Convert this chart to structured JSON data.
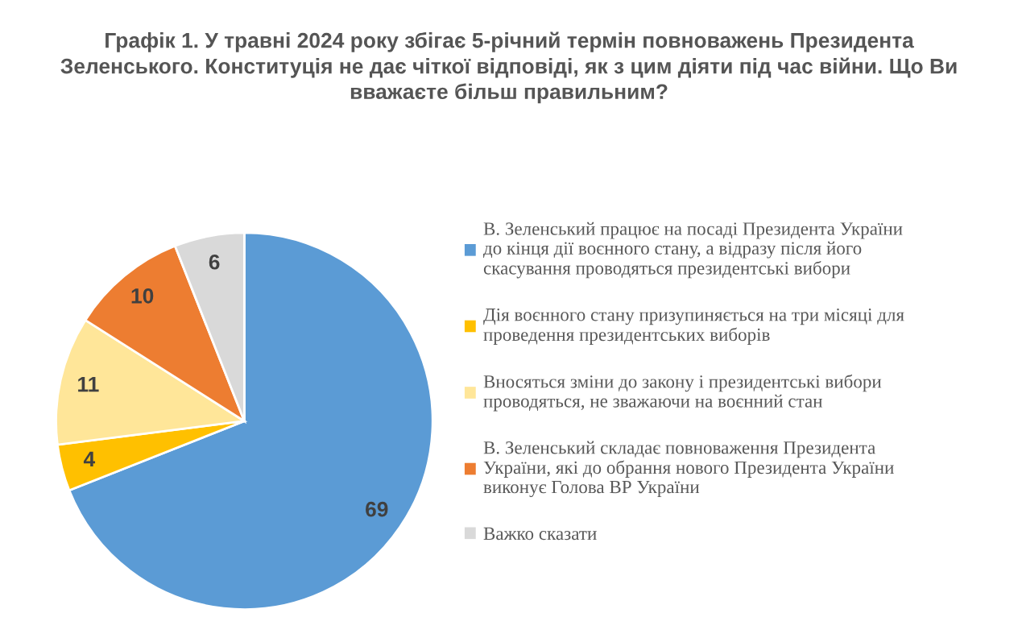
{
  "chart_data": {
    "type": "pie",
    "title": "Графік 1. У травні 2024 року збігає 5-річний термін повноважень Президента\nЗеленського. Конституція не дає чіткої відповіді, як з цим діяти під час війни. Що Ви\nвважаєте більш правильним?",
    "categories": [
      "В. Зеленський працює на посаді Президента України\nдо кінця дії воєнного стану, а відразу після його\nскасування проводяться президентські вибори",
      "Дія воєнного стану призупиняється на три місяці для\nпроведення президентських виборів",
      "Вносяться зміни до закону і президентські вибори\nпроводяться, не зважаючи на воєнний стан",
      "В. Зеленський складає повноваження Президента\nУкраїни, які до обрання нового Президента України\nвиконує Голова ВР України",
      "Важко сказати"
    ],
    "values": [
      69,
      4,
      11,
      10,
      6
    ],
    "colors": [
      "#5b9bd5",
      "#ffc000",
      "#ffe699",
      "#ed7d31",
      "#d9d9d9"
    ],
    "data_labels": true,
    "legend": "right"
  }
}
